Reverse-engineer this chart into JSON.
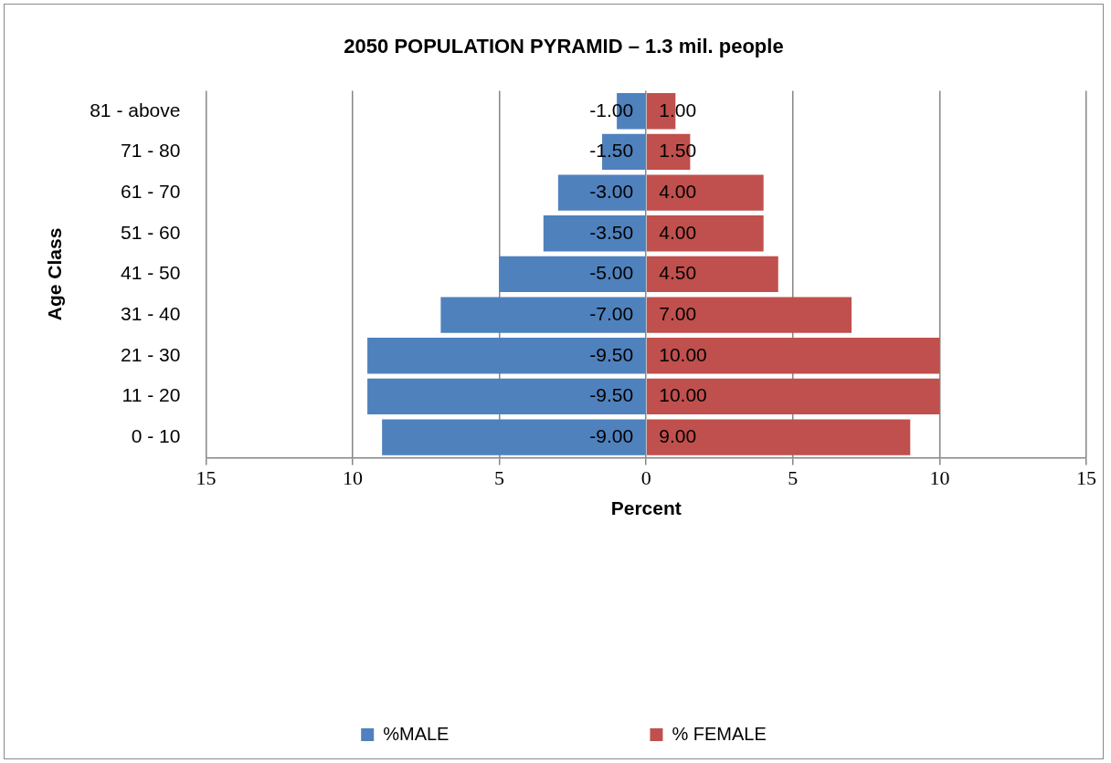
{
  "chart_data": {
    "type": "bar",
    "orientation": "horizontal",
    "stacked": true,
    "title": "2050 POPULATION PYRAMID – 1.3 mil. people",
    "xlabel": "Percent",
    "ylabel": "Age Class",
    "categories": [
      "81 - above",
      "71 - 80",
      "61 - 70",
      "51 - 60",
      "41 - 50",
      "31 - 40",
      "21 - 30",
      "11 - 20",
      "0 - 10"
    ],
    "series": [
      {
        "name": "%MALE",
        "color": "#4f81bd",
        "values": [
          -1,
          -1.5,
          -3,
          -3.5,
          -5,
          -7,
          -9.5,
          -9.5,
          -9
        ],
        "value_labels": [
          "-1.00",
          "-1.50",
          "-3.00",
          "-3.50",
          "-5.00",
          "-7.00",
          "-9.50",
          "-9.50",
          "-9.00"
        ]
      },
      {
        "name": "% FEMALE",
        "color": "#c0504d",
        "values": [
          1,
          1.5,
          4,
          4,
          4.5,
          7,
          10,
          10,
          9
        ],
        "value_labels": [
          "1.00",
          "1.50",
          "4.00",
          "4.00",
          "4.50",
          "7.00",
          "10.00",
          "10.00",
          "9.00"
        ]
      }
    ],
    "xlim": [
      -15,
      15
    ],
    "xticks": [
      {
        "value": -15,
        "label": "15"
      },
      {
        "value": -10,
        "label": "10"
      },
      {
        "value": -5,
        "label": "5"
      },
      0,
      5,
      10,
      15
    ],
    "grid": "x",
    "legend": "bottom"
  }
}
